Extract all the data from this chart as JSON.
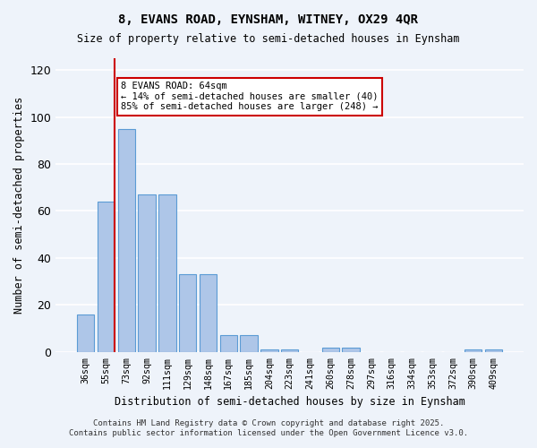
{
  "title1": "8, EVANS ROAD, EYNSHAM, WITNEY, OX29 4QR",
  "title2": "Size of property relative to semi-detached houses in Eynsham",
  "xlabel": "Distribution of semi-detached houses by size in Eynsham",
  "ylabel": "Number of semi-detached properties",
  "categories": [
    "36sqm",
    "55sqm",
    "73sqm",
    "92sqm",
    "111sqm",
    "129sqm",
    "148sqm",
    "167sqm",
    "185sqm",
    "204sqm",
    "223sqm",
    "241sqm",
    "260sqm",
    "278sqm",
    "297sqm",
    "316sqm",
    "334sqm",
    "353sqm",
    "372sqm",
    "390sqm",
    "409sqm"
  ],
  "values": [
    16,
    64,
    95,
    67,
    67,
    33,
    33,
    7,
    7,
    1,
    1,
    0,
    2,
    2,
    0,
    0,
    0,
    0,
    0,
    1,
    1
  ],
  "bar_color": "#aec6e8",
  "bar_edge_color": "#5b9bd5",
  "ylim": [
    0,
    125
  ],
  "yticks": [
    0,
    20,
    40,
    60,
    80,
    100,
    120
  ],
  "property_sqm": 64,
  "property_bin_index": 1,
  "red_line_x": 1,
  "annotation_title": "8 EVANS ROAD: 64sqm",
  "annotation_line1": "← 14% of semi-detached houses are smaller (40)",
  "annotation_line2": "85% of semi-detached houses are larger (248) →",
  "annotation_color": "#cc0000",
  "footer1": "Contains HM Land Registry data © Crown copyright and database right 2025.",
  "footer2": "Contains public sector information licensed under the Open Government Licence v3.0.",
  "bg_color": "#eef3fa",
  "plot_bg_color": "#eef3fa"
}
